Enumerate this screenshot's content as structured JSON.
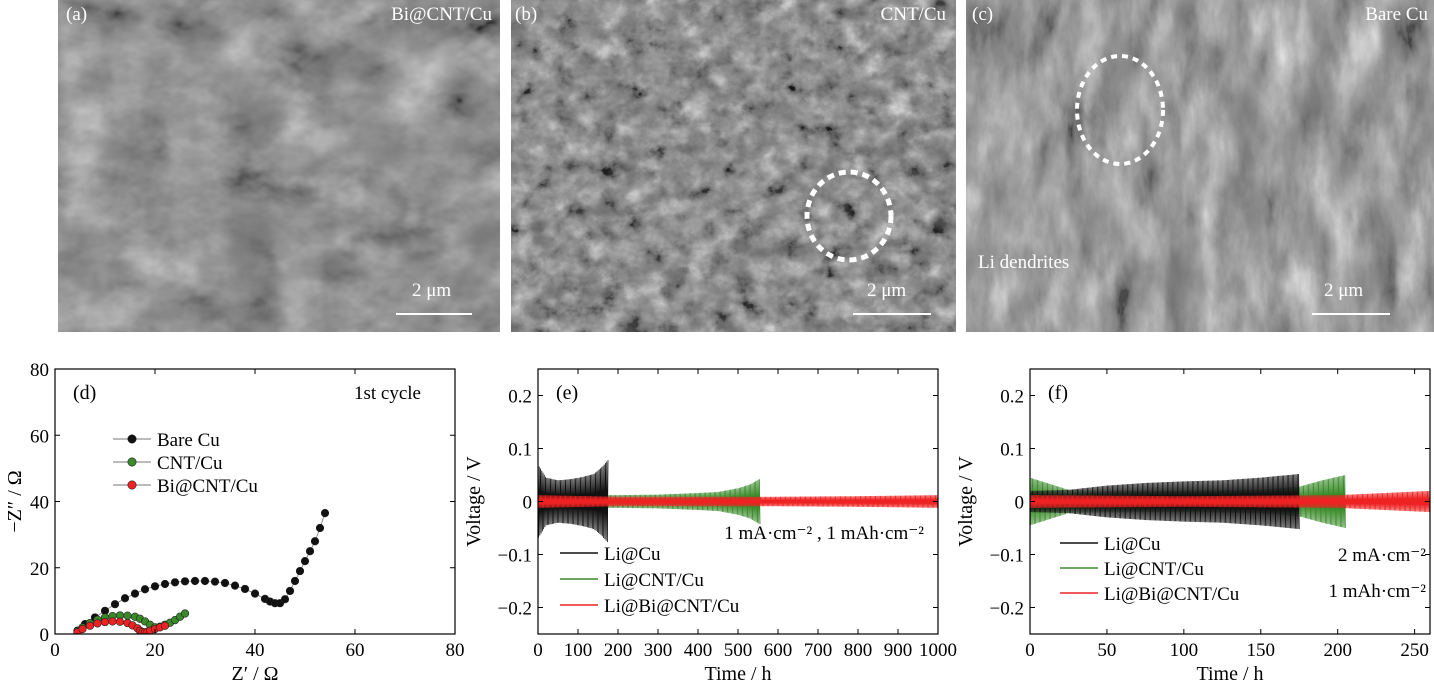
{
  "sem_panels": [
    {
      "label": "(a)",
      "title": "Bi@CNT/Cu",
      "scale": "2 μm"
    },
    {
      "label": "(b)",
      "title": "CNT/Cu",
      "scale": "2 μm"
    },
    {
      "label": "(c)",
      "title": "Bare Cu",
      "scale": "2 μm",
      "annotation": "Li dendrites"
    }
  ],
  "colors": {
    "bare_cu": "#111111",
    "cnt_cu": "#3a8a2a",
    "bi_cnt_cu": "#ee2222"
  },
  "chart_data": [
    {
      "panel_label": "(d)",
      "type": "scatter",
      "annotation": "1st cycle",
      "xlabel": "Z′ / Ω",
      "ylabel": "−Z″ / Ω",
      "xlim": [
        0,
        80
      ],
      "ylim": [
        0,
        80
      ],
      "xticks": [
        0,
        20,
        40,
        60,
        80
      ],
      "yticks": [
        0,
        20,
        40,
        60,
        80
      ],
      "legend_position": "upper-left",
      "series": [
        {
          "name": "Bare Cu",
          "color": "#111111",
          "x": [
            4.5,
            6,
            8,
            10,
            12,
            14,
            16,
            18,
            20,
            22,
            24,
            26,
            28,
            30,
            32,
            34,
            36,
            38,
            40,
            42,
            43,
            44,
            45,
            46,
            47,
            48,
            49,
            50,
            51,
            52,
            53,
            54
          ],
          "y": [
            1,
            3,
            5,
            7,
            9,
            10.8,
            12.2,
            13.5,
            14.4,
            15.1,
            15.6,
            15.9,
            16,
            16,
            15.8,
            15.4,
            14.6,
            13.6,
            12.2,
            10.6,
            9.8,
            9.3,
            9.3,
            10.5,
            13,
            16,
            19,
            22,
            25,
            28,
            32,
            36.5
          ]
        },
        {
          "name": "CNT/Cu",
          "color": "#3a8a2a",
          "x": [
            4.5,
            5.5,
            7,
            8.5,
            10,
            11.5,
            13,
            14.5,
            16,
            17,
            18,
            19,
            20,
            21,
            22,
            23,
            24,
            25,
            26
          ],
          "y": [
            0.8,
            2,
            3.3,
            4.3,
            5,
            5.4,
            5.6,
            5.5,
            5.2,
            4.6,
            3.8,
            2.8,
            2,
            2.2,
            2.8,
            3.4,
            4.2,
            5.2,
            6.2
          ]
        },
        {
          "name": "Bi@CNT/Cu",
          "color": "#ee2222",
          "x": [
            4.5,
            5.5,
            7,
            8.5,
            10,
            11.5,
            13,
            14.5,
            15.5,
            16.5,
            17,
            17.5,
            18,
            18.5,
            19,
            20,
            21,
            22
          ],
          "y": [
            0.5,
            1.5,
            2.5,
            3.2,
            3.6,
            3.8,
            3.7,
            3.3,
            2.6,
            1.7,
            1,
            0.6,
            0.5,
            0.7,
            1,
            1.5,
            2,
            2.5
          ]
        }
      ]
    },
    {
      "panel_label": "(e)",
      "type": "line",
      "annotation": "1 mA·cm⁻² , 1 mAh·cm⁻²",
      "xlabel": "Time / h",
      "ylabel": "Voltage / V",
      "xlim": [
        0,
        1000
      ],
      "ylim": [
        -0.25,
        0.25
      ],
      "xticks": [
        0,
        100,
        200,
        300,
        400,
        500,
        600,
        700,
        800,
        900,
        1000
      ],
      "yticks": [
        -0.2,
        -0.1,
        0,
        0.1,
        0.2
      ],
      "yticklabels": [
        "−0.2",
        "−0.1",
        "0",
        "0.1",
        "0.2"
      ],
      "legend_position": "lower-left",
      "series": [
        {
          "name": "Li@CNT/Cu",
          "color": "#3a8a2a",
          "x": [
            0,
            100,
            200,
            300,
            400,
            450,
            500,
            530,
            555
          ],
          "amplitude": [
            0.02,
            0.012,
            0.012,
            0.013,
            0.016,
            0.018,
            0.025,
            0.032,
            0.043
          ]
        },
        {
          "name": "Li@Cu",
          "color": "#111111",
          "x": [
            0,
            20,
            50,
            80,
            110,
            140,
            160,
            175
          ],
          "amplitude": [
            0.07,
            0.045,
            0.04,
            0.042,
            0.046,
            0.052,
            0.065,
            0.078
          ]
        },
        {
          "name": "Li@Bi@CNT/Cu",
          "color": "#ee2222",
          "x": [
            0,
            200,
            400,
            600,
            800,
            1000
          ],
          "amplitude": [
            0.012,
            0.009,
            0.009,
            0.009,
            0.01,
            0.012
          ]
        }
      ]
    },
    {
      "panel_label": "(f)",
      "type": "line",
      "annotation_lines": [
        "2 mA·cm⁻²",
        "1 mAh·cm⁻²"
      ],
      "xlabel": "Time / h",
      "ylabel": "Voltage / V",
      "xlim": [
        0,
        260
      ],
      "ylim": [
        -0.25,
        0.25
      ],
      "xticks": [
        0,
        50,
        100,
        150,
        200,
        250
      ],
      "yticks": [
        -0.2,
        -0.1,
        0,
        0.1,
        0.2
      ],
      "yticklabels": [
        "−0.2",
        "−0.1",
        "0",
        "0.1",
        "0.2"
      ],
      "legend_position": "lower-left",
      "series": [
        {
          "name": "Li@CNT/Cu",
          "color": "#3a8a2a",
          "x": [
            0,
            25,
            50,
            100,
            150,
            175,
            190,
            205
          ],
          "amplitude": [
            0.045,
            0.022,
            0.02,
            0.02,
            0.022,
            0.028,
            0.04,
            0.05
          ]
        },
        {
          "name": "Li@Cu",
          "color": "#111111",
          "x": [
            0,
            25,
            50,
            75,
            100,
            125,
            150,
            175
          ],
          "amplitude": [
            0.02,
            0.022,
            0.03,
            0.035,
            0.038,
            0.04,
            0.045,
            0.052
          ]
        },
        {
          "name": "Li@Bi@CNT/Cu",
          "color": "#ee2222",
          "x": [
            0,
            100,
            200,
            260
          ],
          "amplitude": [
            0.012,
            0.01,
            0.012,
            0.02
          ]
        }
      ]
    }
  ]
}
